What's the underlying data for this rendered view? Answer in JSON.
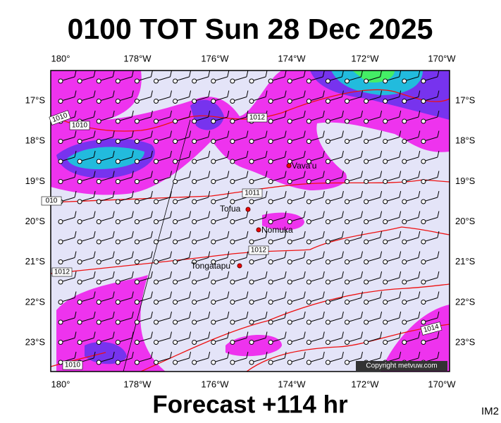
{
  "title": "0100 TOT Sun 28 Dec 2025",
  "footer": "Forecast +114 hr",
  "image_id": "IM2",
  "copyright": "Copyright metvuw.com",
  "lon_labels": [
    "180°",
    "178°W",
    "176°W",
    "174°W",
    "172°W",
    "170°W"
  ],
  "lat_labels": [
    "17°S",
    "18°S",
    "19°S",
    "20°S",
    "21°S",
    "22°S",
    "23°S"
  ],
  "places": [
    {
      "label": "Vava'u"
    },
    {
      "label": "Tofua"
    },
    {
      "label": "Nomuka"
    },
    {
      "label": "Tongatapu"
    }
  ],
  "isobar_labels": [
    "1010",
    "1010",
    "010",
    "1011",
    "1012",
    "1012",
    "1012",
    "1014",
    "1010"
  ]
}
